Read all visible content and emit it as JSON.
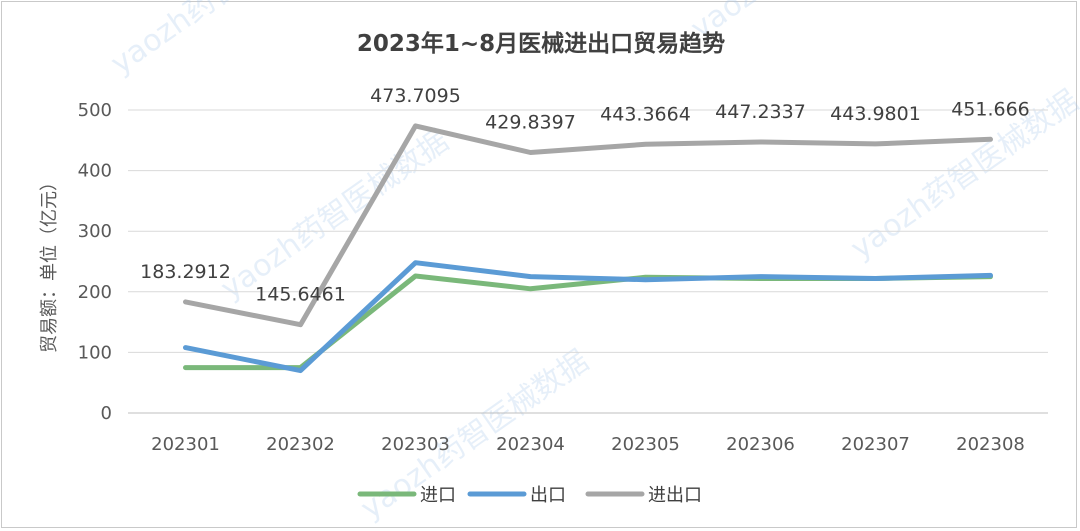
{
  "chart_data": {
    "type": "line",
    "title": "2023年1~8月医械进出口贸易趋势",
    "ylabel": "贸易额：单位（亿元）",
    "xlabel": "",
    "ylim": [
      0,
      500
    ],
    "yticks": [
      0,
      100,
      200,
      300,
      400,
      500
    ],
    "categories": [
      "202301",
      "202302",
      "202303",
      "202304",
      "202305",
      "202306",
      "202307",
      "202308"
    ],
    "series": [
      {
        "name": "进口",
        "color": "#7ab87a",
        "values": [
          75,
          75,
          226,
          205,
          224,
          222,
          222,
          225
        ],
        "labels": []
      },
      {
        "name": "出口",
        "color": "#5b9bd5",
        "values": [
          108,
          70,
          248,
          225,
          220,
          225,
          222,
          227
        ],
        "labels": []
      },
      {
        "name": "进出口",
        "color": "#a6a6a6",
        "values": [
          183.2912,
          145.6461,
          473.7095,
          429.8397,
          443.3664,
          447.2337,
          443.9801,
          451.666
        ],
        "labels": [
          "183.2912",
          "145.6461",
          "473.7095",
          "429.8397",
          "443.3664",
          "447.2337",
          "443.9801",
          "451.666"
        ]
      }
    ],
    "grid": true,
    "legend_position": "bottom"
  },
  "watermark": [
    "yaozh药智医械数据",
    "yaozh药智医械数据",
    "yaozh药智医械数据",
    "yaozh药智医械数据",
    "yaozh药智医械数据"
  ]
}
